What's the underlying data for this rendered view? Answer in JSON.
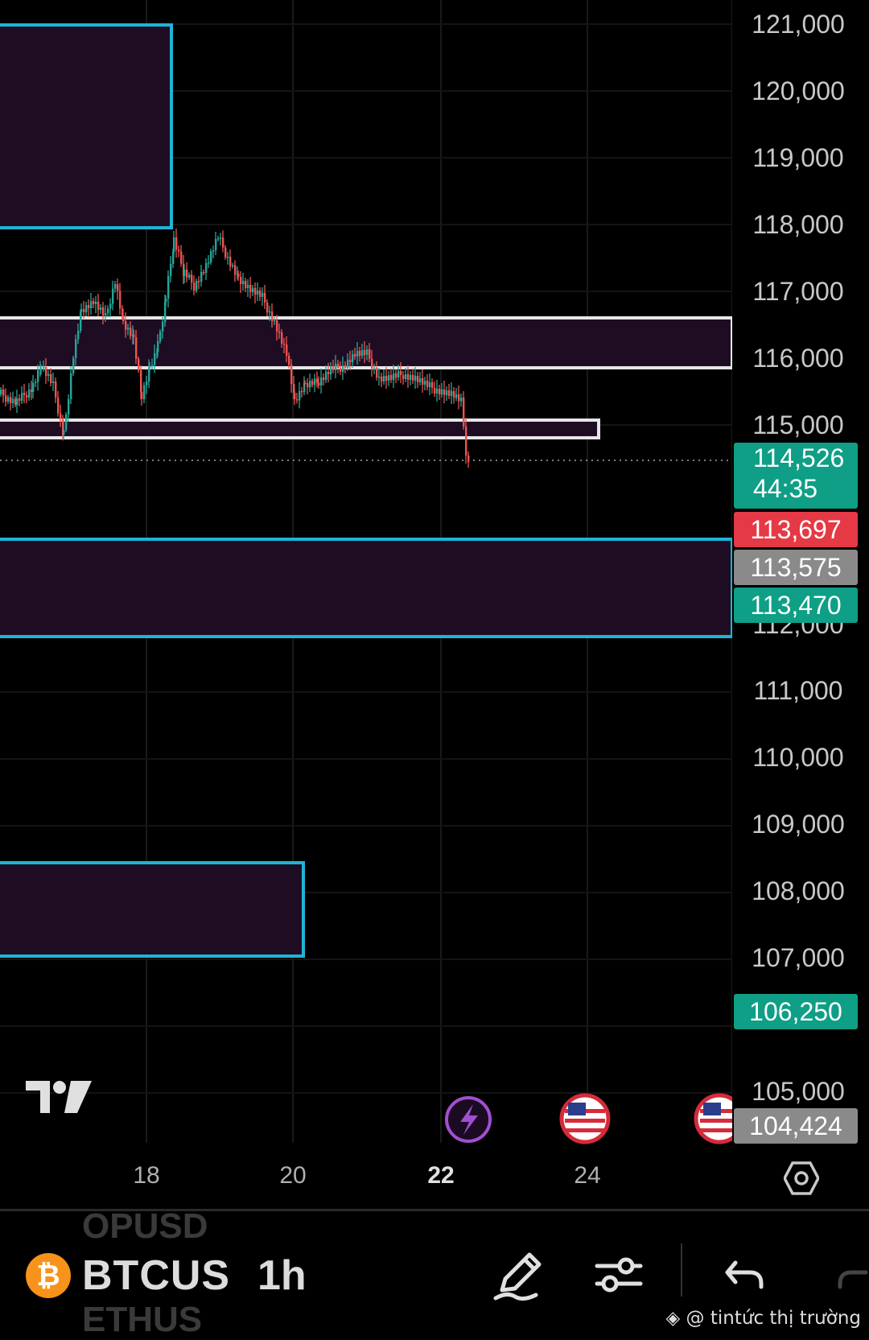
{
  "chart": {
    "symbol": "BTCUS",
    "interval": "1h",
    "ghost_symbols": [
      "OPUSD",
      "ETHUS"
    ],
    "price_axis": [
      "121,000",
      "120,000",
      "119,000",
      "118,000",
      "117,000",
      "116,000",
      "115,000",
      "112,000",
      "111,000",
      "110,000",
      "109,000",
      "108,000",
      "107,000",
      "105,000"
    ],
    "time_axis": [
      {
        "label": "18",
        "bold": false
      },
      {
        "label": "20",
        "bold": false
      },
      {
        "label": "22",
        "bold": true
      },
      {
        "label": "24",
        "bold": false
      }
    ],
    "current_price": "114,526",
    "countdown": "44:35",
    "tags": {
      "red": "113,697",
      "gray": "113,575",
      "green": "113,470",
      "low_green": "106,250",
      "low_gray": "104,424"
    },
    "colors": {
      "up": "#26a69a",
      "down": "#ef5350",
      "zone_border_cyan": "#1fb4d6",
      "zone_border_white": "#e6e6e6",
      "zone_fill": "#1e0d22",
      "current_tag": "#0e9f86",
      "red_tag": "#e53946",
      "gray_tag": "#8a8a8a"
    }
  },
  "toolbar": {
    "draw_icon": "pencil-icon",
    "settings_icon": "sliders-icon",
    "undo_icon": "undo-icon",
    "axis_settings_icon": "hexagon-gear-icon"
  },
  "events": [
    "lightning-event-icon",
    "us-flag-event-icon",
    "us-flag-event-icon"
  ],
  "watermark": "@ tintức thị trường"
}
